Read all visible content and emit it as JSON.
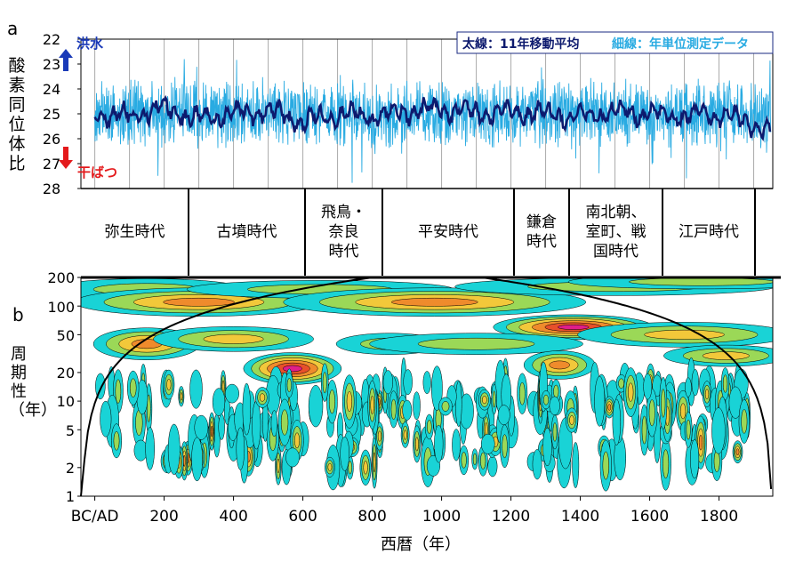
{
  "panel_a": {
    "letter": "a",
    "ylabel": "酸素同位体比",
    "yticks": [
      "22",
      "23",
      "24",
      "25",
      "26",
      "27",
      "28"
    ],
    "flood_label": "洪水",
    "drought_label": "干ばつ",
    "legend_thick": "太線：11年移動平均",
    "legend_thin": "細線：年単位測定データ",
    "colors": {
      "thin": "#29abe2",
      "thick": "#0d1a6e",
      "flood": "#1a3ab8",
      "drought": "#e41a1c"
    }
  },
  "eras": [
    {
      "label": "弥生時代"
    },
    {
      "label": "古墳時代"
    },
    {
      "label": "飛鳥・\n奈良\n時代"
    },
    {
      "label": "平安時代"
    },
    {
      "label": "鎌倉\n時代"
    },
    {
      "label": "南北朝、\n室町、戦\n国時代"
    },
    {
      "label": "江戸時代"
    }
  ],
  "panel_b": {
    "letter": "b",
    "ylabel": "周期性（年）",
    "yticks": [
      "200",
      "100",
      "50",
      "20",
      "10",
      "5",
      "2",
      "1"
    ],
    "xticks": [
      "BC/AD",
      "200",
      "400",
      "600",
      "800",
      "1000",
      "1200",
      "1400",
      "1600",
      "1800"
    ],
    "xlabel": "西暦（年）",
    "colors": {
      "level1": "#19d3d6",
      "level2": "#9bd857",
      "level3": "#f2c83a",
      "level4": "#ef8b2c",
      "level5": "#e8502a",
      "level6": "#e01e8a"
    }
  },
  "chart_data": [
    {
      "type": "line",
      "title": "",
      "xlabel": "",
      "ylabel": "酸素同位体比",
      "xlim": [
        0,
        1950
      ],
      "ylim": [
        28,
        22
      ],
      "inverted_y": true,
      "series": [
        {
          "name": "太線：11年移動平均",
          "x": [
            0,
            100,
            200,
            300,
            400,
            500,
            600,
            700,
            800,
            900,
            1000,
            1100,
            1200,
            1300,
            1400,
            1500,
            1600,
            1700,
            1800,
            1900
          ],
          "values": [
            25.0,
            25.1,
            24.8,
            25.2,
            25.0,
            24.9,
            25.3,
            25.0,
            25.1,
            24.9,
            24.8,
            25.0,
            24.9,
            25.0,
            25.1,
            24.9,
            25.0,
            25.1,
            25.0,
            25.5
          ]
        },
        {
          "name": "細線：年単位測定データ"
        }
      ]
    },
    {
      "type": "heatmap",
      "title": "",
      "xlabel": "西暦（年）",
      "ylabel": "周期性（年）",
      "xlim": [
        0,
        1950
      ],
      "ylim": [
        1,
        200
      ],
      "y_scale": "log",
      "xticks": [
        0,
        200,
        400,
        600,
        800,
        1000,
        1200,
        1400,
        1600,
        1800
      ],
      "yticks": [
        1,
        2,
        5,
        10,
        20,
        50,
        100,
        200
      ]
    }
  ]
}
